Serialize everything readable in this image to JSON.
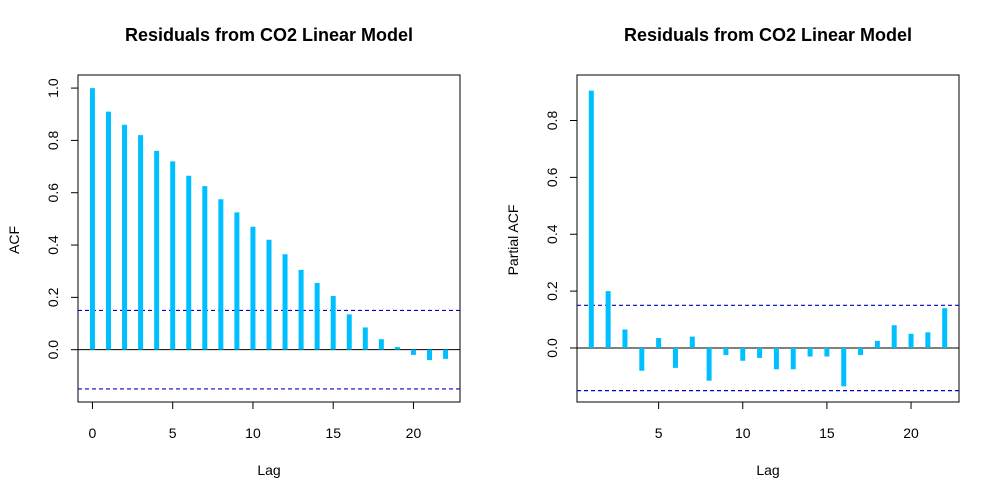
{
  "colors": {
    "spike": "#00bfff",
    "ci_line": "#0000cd",
    "axis": "#000000",
    "background": "#ffffff"
  },
  "chart_data": [
    {
      "type": "bar",
      "title": "Residuals from CO2 Linear Model",
      "xlabel": "Lag",
      "ylabel": "ACF",
      "x": [
        0,
        1,
        2,
        3,
        4,
        5,
        6,
        7,
        8,
        9,
        10,
        11,
        12,
        13,
        14,
        15,
        16,
        17,
        18,
        19,
        20,
        21,
        22
      ],
      "values": [
        1.0,
        0.91,
        0.86,
        0.82,
        0.76,
        0.72,
        0.665,
        0.625,
        0.575,
        0.525,
        0.47,
        0.42,
        0.365,
        0.305,
        0.255,
        0.205,
        0.135,
        0.085,
        0.04,
        0.01,
        -0.02,
        -0.04,
        -0.035
      ],
      "ci": [
        0.15,
        -0.15
      ],
      "xlim": [
        -0.9,
        22.9
      ],
      "ylim": [
        -0.2,
        1.05
      ],
      "xticks": [
        0,
        5,
        10,
        15,
        20
      ],
      "yticks": [
        0.0,
        0.2,
        0.4,
        0.6,
        0.8,
        1.0
      ],
      "ytick_labels": [
        "0.0",
        "0.2",
        "0.4",
        "0.6",
        "0.8",
        "1.0"
      ],
      "zero_line": true
    },
    {
      "type": "bar",
      "title": "Residuals from CO2 Linear Model",
      "xlabel": "Lag",
      "ylabel": "Partial ACF",
      "x": [
        1,
        2,
        3,
        4,
        5,
        6,
        7,
        8,
        9,
        10,
        11,
        12,
        13,
        14,
        15,
        16,
        17,
        18,
        19,
        20,
        21,
        22
      ],
      "values": [
        0.905,
        0.2,
        0.065,
        -0.08,
        0.035,
        -0.07,
        0.04,
        -0.115,
        -0.025,
        -0.045,
        -0.035,
        -0.075,
        -0.075,
        -0.03,
        -0.03,
        -0.135,
        -0.025,
        0.025,
        0.08,
        0.05,
        0.055,
        0.14
      ],
      "ci": [
        0.15,
        -0.15
      ],
      "xlim": [
        0.15,
        22.85
      ],
      "ylim": [
        -0.19,
        0.96
      ],
      "xticks": [
        5,
        10,
        15,
        20
      ],
      "yticks": [
        0.0,
        0.2,
        0.4,
        0.6,
        0.8
      ],
      "ytick_labels": [
        "0.0",
        "0.2",
        "0.4",
        "0.6",
        "0.8"
      ],
      "zero_line": true
    }
  ]
}
